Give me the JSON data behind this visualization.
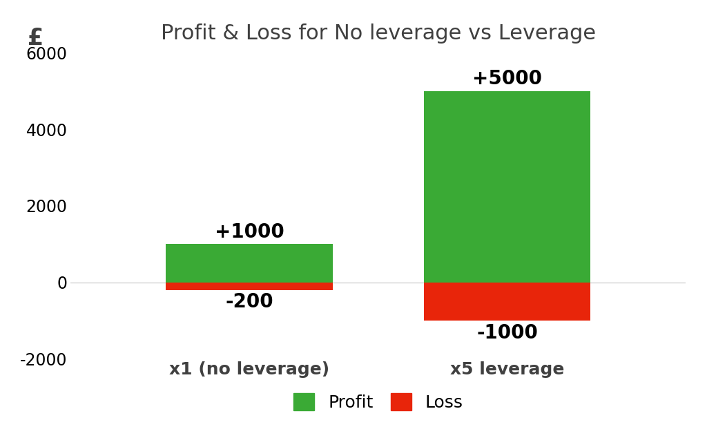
{
  "title": "Profit & Loss for No leverage vs Leverage",
  "currency_symbol": "£",
  "categories": [
    "x1 (no leverage)",
    "x5 leverage"
  ],
  "profit_values": [
    1000,
    5000
  ],
  "loss_values": [
    -200,
    -1000
  ],
  "profit_labels": [
    "+1000",
    "+5000"
  ],
  "loss_labels": [
    "-200",
    "-1000"
  ],
  "profit_color": "#3aaa35",
  "loss_color": "#e8250a",
  "background_color": "#ffffff",
  "ylim": [
    -2000,
    6000
  ],
  "yticks": [
    -2000,
    0,
    2000,
    4000,
    6000
  ],
  "bar_width": 0.42,
  "legend_labels": [
    "Profit",
    "Loss"
  ],
  "title_fontsize": 22,
  "label_fontsize": 18,
  "tick_fontsize": 17,
  "annotation_fontsize": 20,
  "category_fontsize": 18
}
